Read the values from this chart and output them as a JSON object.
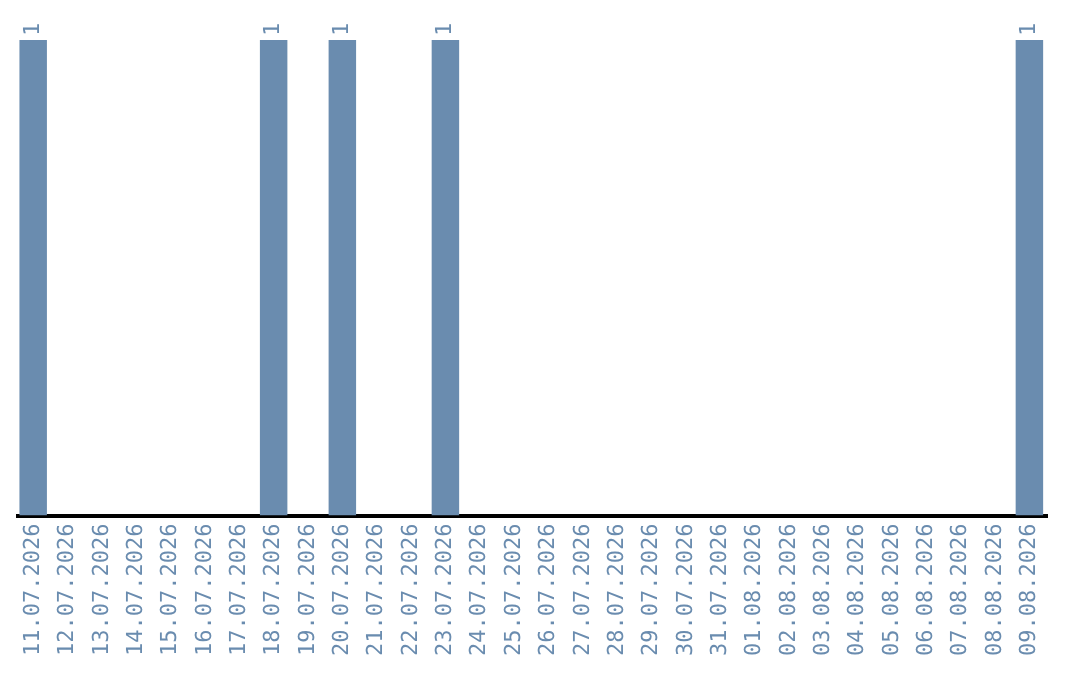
{
  "chart_data": {
    "type": "bar",
    "categories": [
      "11.07.2026",
      "12.07.2026",
      "13.07.2026",
      "14.07.2026",
      "15.07.2026",
      "16.07.2026",
      "17.07.2026",
      "18.07.2026",
      "19.07.2026",
      "20.07.2026",
      "21.07.2026",
      "22.07.2026",
      "23.07.2026",
      "24.07.2026",
      "25.07.2026",
      "26.07.2026",
      "27.07.2026",
      "28.07.2026",
      "29.07.2026",
      "30.07.2026",
      "31.07.2026",
      "01.08.2026",
      "02.08.2026",
      "03.08.2026",
      "04.08.2026",
      "05.08.2026",
      "06.08.2026",
      "07.08.2026",
      "08.08.2026",
      "09.08.2026"
    ],
    "values": [
      1,
      0,
      0,
      0,
      0,
      0,
      0,
      1,
      0,
      1,
      0,
      0,
      1,
      0,
      0,
      0,
      0,
      0,
      0,
      0,
      0,
      0,
      0,
      0,
      0,
      0,
      0,
      0,
      0,
      1
    ],
    "value_labels": [
      "1",
      null,
      null,
      null,
      null,
      null,
      null,
      "1",
      null,
      "1",
      null,
      null,
      "1",
      null,
      null,
      null,
      null,
      null,
      null,
      null,
      null,
      null,
      null,
      null,
      null,
      null,
      null,
      null,
      null,
      "1"
    ],
    "color": "#6a8caf",
    "tick_labels": "x",
    "grid": false,
    "legend": false
  }
}
